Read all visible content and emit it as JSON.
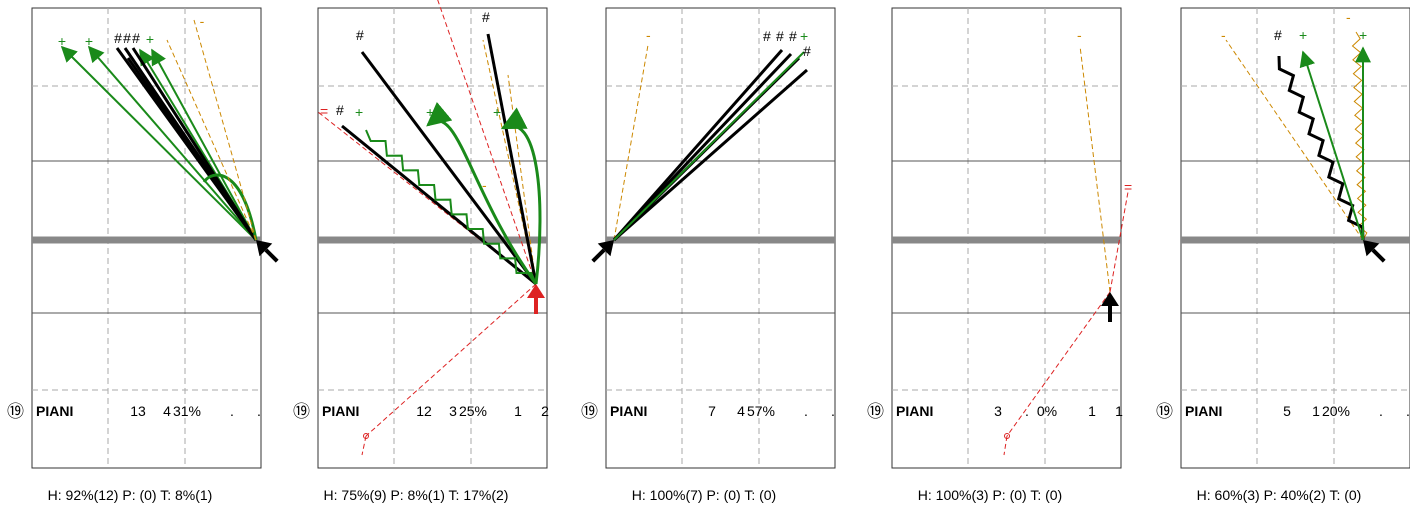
{
  "chart_data": [
    {
      "type": "other",
      "icon": "circled-19",
      "player": "PIANI",
      "stats": [
        "13",
        "4",
        "31%",
        ".",
        "."
      ],
      "footer": "H: 92%(12)  P: (0)  T: 8%(1)",
      "marks": {
        "plus": "+",
        "hash": "#",
        "dash": "-",
        "equals": "="
      }
    },
    {
      "type": "other",
      "icon": "circled-19",
      "player": "PIANI",
      "stats": [
        "12",
        "3",
        "25%",
        "1",
        "2"
      ],
      "footer": "H: 75%(9)  P: 8%(1)  T: 17%(2)",
      "marks": {
        "plus": "+",
        "hash": "#",
        "dash": "-",
        "equals": "="
      }
    },
    {
      "type": "other",
      "icon": "circled-19",
      "player": "PIANI",
      "stats": [
        "7",
        "4",
        "57%",
        ".",
        "."
      ],
      "footer": "H: 100%(7)  P: (0)  T: (0)",
      "marks": {
        "plus": "+",
        "hash": "#",
        "dash": "-",
        "equals": "="
      }
    },
    {
      "type": "other",
      "icon": "circled-19",
      "player": "PIANI",
      "stats": [
        "3",
        ".",
        "0%",
        "1",
        "1"
      ],
      "footer": "H: 100%(3)  P: (0)  T: (0)",
      "marks": {
        "plus": "+",
        "hash": "#",
        "dash": "-",
        "equals": "="
      }
    },
    {
      "type": "other",
      "icon": "circled-19",
      "player": "PIANI",
      "stats": [
        "5",
        "1",
        "20%",
        ".",
        "."
      ],
      "footer": "H: 60%(3)  P: 40%(2)  T: (0)",
      "marks": {
        "plus": "+",
        "hash": "#",
        "dash": "-",
        "equals": "="
      }
    }
  ],
  "colors": {
    "green": "#1a8a1a",
    "black": "#000000",
    "orange": "#cc8800",
    "red": "#dd2222",
    "midline": "#888888",
    "grid": "#aaaaaa"
  }
}
